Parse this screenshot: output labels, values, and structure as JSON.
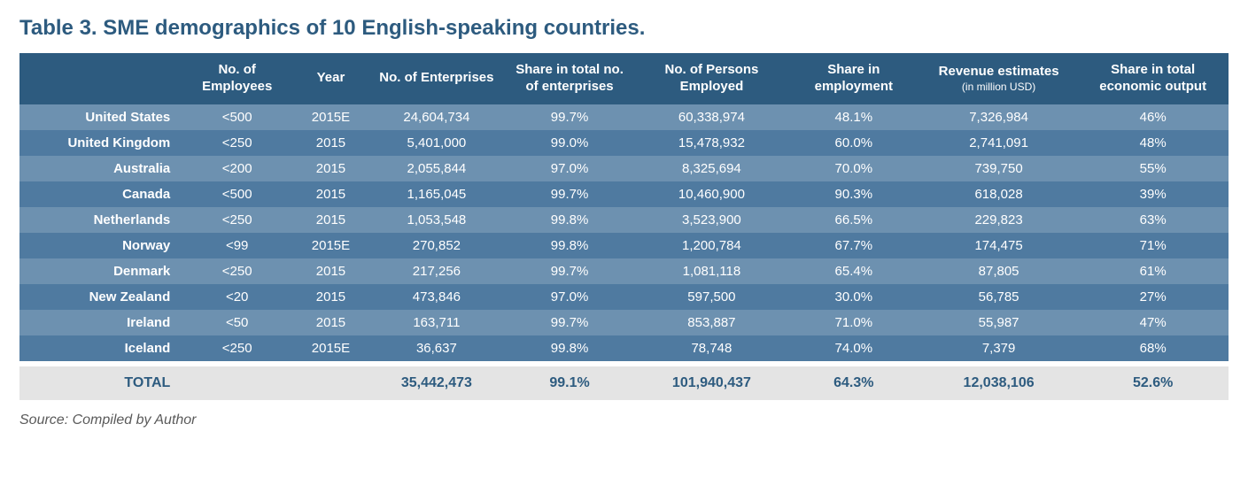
{
  "title": "Table 3. SME demographics of 10 English-speaking countries.",
  "source": "Source: Compiled by Author",
  "colors": {
    "header_bg": "#2d5b7f",
    "band_a": "#6d91b0",
    "band_b": "#4f7aa0",
    "total_bg": "#e4e4e4",
    "title_text": "#2d5b7f",
    "cell_text": "#ffffff",
    "source_text": "#5a5a5a"
  },
  "columns": [
    {
      "key": "country",
      "label": ""
    },
    {
      "key": "no_employees",
      "label": "No. of Employees"
    },
    {
      "key": "year",
      "label": "Year"
    },
    {
      "key": "no_enterprises",
      "label": "No. of Enterprises"
    },
    {
      "key": "share_enterprises",
      "label": "Share in total no. of enterprises"
    },
    {
      "key": "no_persons",
      "label": "No. of Persons Employed"
    },
    {
      "key": "share_employment",
      "label": "Share in employment"
    },
    {
      "key": "revenue",
      "label": "Revenue estimates",
      "sublabel": "(in million USD)"
    },
    {
      "key": "share_output",
      "label": "Share in total economic output"
    }
  ],
  "rows": [
    {
      "country": "United States",
      "no_employees": "<500",
      "year": "2015E",
      "no_enterprises": "24,604,734",
      "share_enterprises": "99.7%",
      "no_persons": "60,338,974",
      "share_employment": "48.1%",
      "revenue": "7,326,984",
      "share_output": "46%"
    },
    {
      "country": "United Kingdom",
      "no_employees": "<250",
      "year": "2015",
      "no_enterprises": "5,401,000",
      "share_enterprises": "99.0%",
      "no_persons": "15,478,932",
      "share_employment": "60.0%",
      "revenue": "2,741,091",
      "share_output": "48%"
    },
    {
      "country": "Australia",
      "no_employees": "<200",
      "year": "2015",
      "no_enterprises": "2,055,844",
      "share_enterprises": "97.0%",
      "no_persons": "8,325,694",
      "share_employment": "70.0%",
      "revenue": "739,750",
      "share_output": "55%"
    },
    {
      "country": "Canada",
      "no_employees": "<500",
      "year": "2015",
      "no_enterprises": "1,165,045",
      "share_enterprises": "99.7%",
      "no_persons": "10,460,900",
      "share_employment": "90.3%",
      "revenue": "618,028",
      "share_output": "39%"
    },
    {
      "country": "Netherlands",
      "no_employees": "<250",
      "year": "2015",
      "no_enterprises": "1,053,548",
      "share_enterprises": "99.8%",
      "no_persons": "3,523,900",
      "share_employment": "66.5%",
      "revenue": "229,823",
      "share_output": "63%"
    },
    {
      "country": "Norway",
      "no_employees": "<99",
      "year": "2015E",
      "no_enterprises": "270,852",
      "share_enterprises": "99.8%",
      "no_persons": "1,200,784",
      "share_employment": "67.7%",
      "revenue": "174,475",
      "share_output": "71%"
    },
    {
      "country": "Denmark",
      "no_employees": "<250",
      "year": "2015",
      "no_enterprises": "217,256",
      "share_enterprises": "99.7%",
      "no_persons": "1,081,118",
      "share_employment": "65.4%",
      "revenue": "87,805",
      "share_output": "61%"
    },
    {
      "country": "New Zealand",
      "no_employees": "<20",
      "year": "2015",
      "no_enterprises": "473,846",
      "share_enterprises": "97.0%",
      "no_persons": "597,500",
      "share_employment": "30.0%",
      "revenue": "56,785",
      "share_output": "27%"
    },
    {
      "country": "Ireland",
      "no_employees": "<50",
      "year": "2015",
      "no_enterprises": "163,711",
      "share_enterprises": "99.7%",
      "no_persons": "853,887",
      "share_employment": "71.0%",
      "revenue": "55,987",
      "share_output": "47%"
    },
    {
      "country": "Iceland",
      "no_employees": "<250",
      "year": "2015E",
      "no_enterprises": "36,637",
      "share_enterprises": "99.8%",
      "no_persons": "78,748",
      "share_employment": "74.0%",
      "revenue": "7,379",
      "share_output": "68%"
    }
  ],
  "total": {
    "label": "TOTAL",
    "no_employees": "",
    "year": "",
    "no_enterprises": "35,442,473",
    "share_enterprises": "99.1%",
    "no_persons": "101,940,437",
    "share_employment": "64.3%",
    "revenue": "12,038,106",
    "share_output": "52.6%"
  }
}
